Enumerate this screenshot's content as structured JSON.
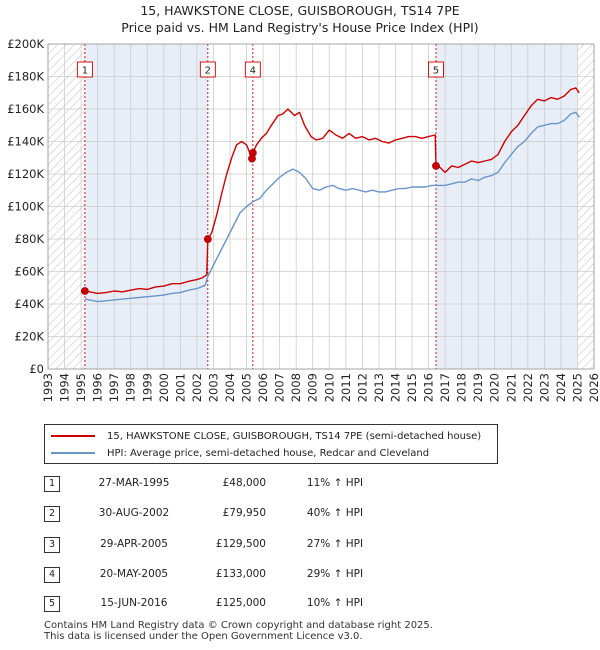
{
  "title_line1": "15, HAWKSTONE CLOSE, GUISBOROUGH, TS14 7PE",
  "title_line2": "Price paid vs. HM Land Registry's House Price Index (HPI)",
  "colors": {
    "property": "#cc0000",
    "hpi": "#6a95c9",
    "shade": "#e8eef8",
    "grid": "#cccccc"
  },
  "chart_data": {
    "type": "line",
    "x_range": [
      1993,
      2026
    ],
    "y_range": [
      0,
      200000
    ],
    "y_ticks": [
      {
        "value": 0,
        "label": "£0"
      },
      {
        "value": 20000,
        "label": "£20K"
      },
      {
        "value": 40000,
        "label": "£40K"
      },
      {
        "value": 60000,
        "label": "£60K"
      },
      {
        "value": 80000,
        "label": "£80K"
      },
      {
        "value": 100000,
        "label": "£100K"
      },
      {
        "value": 120000,
        "label": "£120K"
      },
      {
        "value": 140000,
        "label": "£140K"
      },
      {
        "value": 160000,
        "label": "£160K"
      },
      {
        "value": 180000,
        "label": "£180K"
      },
      {
        "value": 200000,
        "label": "£200K"
      }
    ],
    "x_ticks": [
      "1993",
      "1994",
      "1995",
      "1996",
      "1997",
      "1998",
      "1999",
      "2000",
      "2001",
      "2002",
      "2003",
      "2004",
      "2005",
      "2006",
      "2007",
      "2008",
      "2009",
      "2010",
      "2011",
      "2012",
      "2013",
      "2014",
      "2015",
      "2016",
      "2017",
      "2018",
      "2019",
      "2020",
      "2021",
      "2022",
      "2023",
      "2024",
      "2025",
      "2026"
    ],
    "grid": true,
    "shaded_spans": [
      [
        1995.23,
        2002.66
      ],
      [
        2016.45,
        2025.0
      ]
    ],
    "hatched_regions": [
      [
        1993,
        1995.23
      ],
      [
        2025.0,
        2026
      ]
    ],
    "series": [
      {
        "name": "15, HAWKSTONE CLOSE, GUISBOROUGH, TS14 7PE (semi-detached house)",
        "color": "#cc0000",
        "points": [
          [
            1995.23,
            48000
          ],
          [
            1995.5,
            47500
          ],
          [
            1996,
            46500
          ],
          [
            1996.5,
            47000
          ],
          [
            1997,
            48000
          ],
          [
            1997.5,
            47500
          ],
          [
            1998,
            48500
          ],
          [
            1998.5,
            49500
          ],
          [
            1999,
            49000
          ],
          [
            1999.5,
            50500
          ],
          [
            2000,
            51000
          ],
          [
            2000.5,
            52500
          ],
          [
            2001,
            52500
          ],
          [
            2001.5,
            54000
          ],
          [
            2002,
            55000
          ],
          [
            2002.3,
            56000
          ],
          [
            2002.6,
            58000
          ],
          [
            2002.66,
            79950
          ],
          [
            2002.9,
            84000
          ],
          [
            2003.2,
            95000
          ],
          [
            2003.5,
            108000
          ],
          [
            2003.8,
            120000
          ],
          [
            2004.1,
            130000
          ],
          [
            2004.4,
            138000
          ],
          [
            2004.7,
            140000
          ],
          [
            2005.0,
            138000
          ],
          [
            2005.33,
            129500
          ],
          [
            2005.38,
            133000
          ],
          [
            2005.6,
            138000
          ],
          [
            2005.9,
            142000
          ],
          [
            2006.2,
            145000
          ],
          [
            2006.5,
            150000
          ],
          [
            2006.9,
            156000
          ],
          [
            2007.2,
            157000
          ],
          [
            2007.5,
            160000
          ],
          [
            2007.9,
            156000
          ],
          [
            2008.2,
            158000
          ],
          [
            2008.5,
            150000
          ],
          [
            2008.9,
            143000
          ],
          [
            2009.2,
            141000
          ],
          [
            2009.6,
            142000
          ],
          [
            2010.0,
            147000
          ],
          [
            2010.4,
            144000
          ],
          [
            2010.8,
            142000
          ],
          [
            2011.2,
            145000
          ],
          [
            2011.6,
            142000
          ],
          [
            2012.0,
            143000
          ],
          [
            2012.4,
            141000
          ],
          [
            2012.8,
            142000
          ],
          [
            2013.2,
            140000
          ],
          [
            2013.6,
            139000
          ],
          [
            2014.0,
            141000
          ],
          [
            2014.4,
            142000
          ],
          [
            2014.8,
            143000
          ],
          [
            2015.2,
            143000
          ],
          [
            2015.6,
            142000
          ],
          [
            2016.0,
            143000
          ],
          [
            2016.4,
            144000
          ],
          [
            2016.45,
            125000
          ],
          [
            2016.7,
            124000
          ],
          [
            2017.0,
            121000
          ],
          [
            2017.4,
            125000
          ],
          [
            2017.8,
            124000
          ],
          [
            2018.2,
            126000
          ],
          [
            2018.6,
            128000
          ],
          [
            2019.0,
            127000
          ],
          [
            2019.4,
            128000
          ],
          [
            2019.8,
            129000
          ],
          [
            2020.2,
            132000
          ],
          [
            2020.6,
            140000
          ],
          [
            2021.0,
            146000
          ],
          [
            2021.4,
            150000
          ],
          [
            2021.8,
            156000
          ],
          [
            2022.2,
            162000
          ],
          [
            2022.6,
            166000
          ],
          [
            2023.0,
            165000
          ],
          [
            2023.4,
            167000
          ],
          [
            2023.8,
            166000
          ],
          [
            2024.2,
            168000
          ],
          [
            2024.6,
            172000
          ],
          [
            2024.9,
            173000
          ],
          [
            2025.1,
            170000
          ]
        ]
      },
      {
        "name": "HPI: Average price, semi-detached house, Redcar and Cleveland",
        "color": "#6a95c9",
        "points": [
          [
            1995.23,
            43000
          ],
          [
            1995.5,
            42500
          ],
          [
            1996,
            41500
          ],
          [
            1996.5,
            42000
          ],
          [
            1997,
            42500
          ],
          [
            1997.5,
            43000
          ],
          [
            1998,
            43500
          ],
          [
            1998.5,
            44000
          ],
          [
            1999,
            44500
          ],
          [
            1999.5,
            45000
          ],
          [
            2000,
            45500
          ],
          [
            2000.5,
            46500
          ],
          [
            2001,
            47000
          ],
          [
            2001.5,
            48500
          ],
          [
            2002,
            49500
          ],
          [
            2002.5,
            51500
          ],
          [
            2002.66,
            57000
          ],
          [
            2003.0,
            64000
          ],
          [
            2003.4,
            72000
          ],
          [
            2003.8,
            80000
          ],
          [
            2004.2,
            88000
          ],
          [
            2004.6,
            96000
          ],
          [
            2005.0,
            100000
          ],
          [
            2005.4,
            103000
          ],
          [
            2005.8,
            105000
          ],
          [
            2006.2,
            110000
          ],
          [
            2006.6,
            114000
          ],
          [
            2007.0,
            118000
          ],
          [
            2007.4,
            121000
          ],
          [
            2007.8,
            123000
          ],
          [
            2008.2,
            121000
          ],
          [
            2008.6,
            117000
          ],
          [
            2009.0,
            111000
          ],
          [
            2009.4,
            110000
          ],
          [
            2009.8,
            112000
          ],
          [
            2010.2,
            113000
          ],
          [
            2010.6,
            111000
          ],
          [
            2011.0,
            110000
          ],
          [
            2011.4,
            111000
          ],
          [
            2011.8,
            110000
          ],
          [
            2012.2,
            109000
          ],
          [
            2012.6,
            110000
          ],
          [
            2013.0,
            109000
          ],
          [
            2013.4,
            109000
          ],
          [
            2013.8,
            110000
          ],
          [
            2014.2,
            111000
          ],
          [
            2014.6,
            111000
          ],
          [
            2015.0,
            112000
          ],
          [
            2015.4,
            112000
          ],
          [
            2015.8,
            112000
          ],
          [
            2016.2,
            113000
          ],
          [
            2016.6,
            113000
          ],
          [
            2017.0,
            113000
          ],
          [
            2017.4,
            114000
          ],
          [
            2017.8,
            115000
          ],
          [
            2018.2,
            115000
          ],
          [
            2018.6,
            117000
          ],
          [
            2019.0,
            116000
          ],
          [
            2019.4,
            118000
          ],
          [
            2019.8,
            119000
          ],
          [
            2020.2,
            121000
          ],
          [
            2020.6,
            127000
          ],
          [
            2021.0,
            132000
          ],
          [
            2021.4,
            137000
          ],
          [
            2021.8,
            140000
          ],
          [
            2022.2,
            145000
          ],
          [
            2022.6,
            149000
          ],
          [
            2023.0,
            150000
          ],
          [
            2023.4,
            151000
          ],
          [
            2023.8,
            151000
          ],
          [
            2024.2,
            153000
          ],
          [
            2024.6,
            157000
          ],
          [
            2024.9,
            158000
          ],
          [
            2025.1,
            155000
          ]
        ]
      }
    ],
    "transactions": [
      {
        "num": "1",
        "x": 1995.23,
        "y": 48000
      },
      {
        "num": "2",
        "x": 2002.66,
        "y": 79950
      },
      {
        "num": "4",
        "x": 2005.38,
        "y": 133000
      },
      {
        "num": "3",
        "x": 2005.33,
        "y": 129500
      },
      {
        "num": "5",
        "x": 2016.45,
        "y": 125000
      }
    ],
    "marker_labels": [
      {
        "num": "1",
        "x": 1995.23
      },
      {
        "num": "2",
        "x": 2002.66
      },
      {
        "num": "4",
        "x": 2005.38
      },
      {
        "num": "5",
        "x": 2016.45
      }
    ]
  },
  "legend": {
    "property_label": "15, HAWKSTONE CLOSE, GUISBOROUGH, TS14 7PE (semi-detached house)",
    "hpi_label": "HPI: Average price, semi-detached house, Redcar and Cleveland"
  },
  "table": [
    {
      "num": "1",
      "date": "27-MAR-1995",
      "price": "£48,000",
      "hpi": "11% ↑ HPI"
    },
    {
      "num": "2",
      "date": "30-AUG-2002",
      "price": "£79,950",
      "hpi": "40% ↑ HPI"
    },
    {
      "num": "3",
      "date": "29-APR-2005",
      "price": "£129,500",
      "hpi": "27% ↑ HPI"
    },
    {
      "num": "4",
      "date": "20-MAY-2005",
      "price": "£133,000",
      "hpi": "29% ↑ HPI"
    },
    {
      "num": "5",
      "date": "15-JUN-2016",
      "price": "£125,000",
      "hpi": "10% ↑ HPI"
    }
  ],
  "footer_line1": "Contains HM Land Registry data © Crown copyright and database right 2025.",
  "footer_line2": "This data is licensed under the Open Government Licence v3.0."
}
